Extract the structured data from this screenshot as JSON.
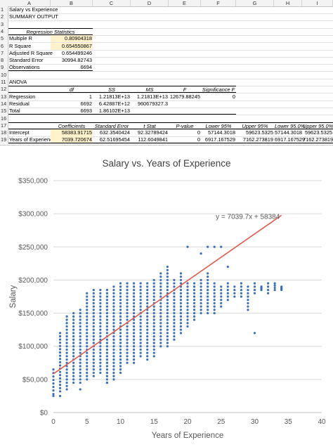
{
  "spreadsheet": {
    "columns": [
      "A",
      "B",
      "C",
      "D",
      "E",
      "F",
      "G",
      "H",
      "I"
    ],
    "rows": [
      {
        "n": "1",
        "cells": [
          {
            "c": "A",
            "t": "Salary vs Experience"
          }
        ]
      },
      {
        "n": "2",
        "cells": [
          {
            "c": "A",
            "t": "SUMMARY OUTPUT"
          }
        ]
      },
      {
        "n": "3",
        "cells": []
      },
      {
        "n": "4",
        "cells": [
          {
            "c": "A",
            "t": "Regression Statistics",
            "style": "ital ctr bline tline",
            "span": 2
          }
        ]
      },
      {
        "n": "5",
        "cells": [
          {
            "c": "A",
            "t": "Multiple R"
          },
          {
            "c": "B",
            "t": "0.80904318",
            "style": "num hl"
          }
        ]
      },
      {
        "n": "6",
        "cells": [
          {
            "c": "A",
            "t": "R Square"
          },
          {
            "c": "B",
            "t": "0.654550867",
            "style": "num hl"
          }
        ]
      },
      {
        "n": "7",
        "cells": [
          {
            "c": "A",
            "t": "Adjusted R Square"
          },
          {
            "c": "B",
            "t": "0.654499246",
            "style": "num"
          }
        ]
      },
      {
        "n": "8",
        "cells": [
          {
            "c": "A",
            "t": "Standard Error"
          },
          {
            "c": "B",
            "t": "30994.82743",
            "style": "num"
          }
        ]
      },
      {
        "n": "9",
        "cells": [
          {
            "c": "A",
            "t": "Observations",
            "style": "bline"
          },
          {
            "c": "B",
            "t": "6694",
            "style": "num bline"
          }
        ]
      },
      {
        "n": "10",
        "cells": []
      },
      {
        "n": "11",
        "cells": [
          {
            "c": "A",
            "t": "ANOVA"
          }
        ]
      },
      {
        "n": "12",
        "cells": [
          {
            "c": "A",
            "t": "",
            "style": "bline tline"
          },
          {
            "c": "B",
            "t": "df",
            "style": "ital ctr bline tline"
          },
          {
            "c": "C",
            "t": "SS",
            "style": "ital ctr bline tline"
          },
          {
            "c": "D",
            "t": "MS",
            "style": "ital ctr bline tline"
          },
          {
            "c": "E",
            "t": "F",
            "style": "ital ctr bline tline"
          },
          {
            "c": "F",
            "t": "Significance F",
            "style": "ital ctr bline tline"
          }
        ]
      },
      {
        "n": "13",
        "cells": [
          {
            "c": "A",
            "t": "Regression"
          },
          {
            "c": "B",
            "t": "1",
            "style": "num"
          },
          {
            "c": "C",
            "t": "1.21813E+13",
            "style": "num"
          },
          {
            "c": "D",
            "t": "1.21813E+13",
            "style": "num"
          },
          {
            "c": "E",
            "t": "12679.88245",
            "style": "num"
          },
          {
            "c": "F",
            "t": "0",
            "style": "num"
          }
        ]
      },
      {
        "n": "14",
        "cells": [
          {
            "c": "A",
            "t": "Residual"
          },
          {
            "c": "B",
            "t": "6692",
            "style": "num"
          },
          {
            "c": "C",
            "t": "6.42887E+12",
            "style": "num"
          },
          {
            "c": "D",
            "t": "960679327.3",
            "style": "num"
          }
        ]
      },
      {
        "n": "15",
        "cells": [
          {
            "c": "A",
            "t": "Total",
            "style": "bline"
          },
          {
            "c": "B",
            "t": "6693",
            "style": "num bline"
          },
          {
            "c": "C",
            "t": "1.86102E+13",
            "style": "num bline"
          },
          {
            "c": "D",
            "t": "",
            "style": "bline"
          },
          {
            "c": "E",
            "t": "",
            "style": "bline"
          },
          {
            "c": "F",
            "t": "",
            "style": "bline"
          }
        ]
      },
      {
        "n": "16",
        "cells": []
      },
      {
        "n": "17",
        "cells": [
          {
            "c": "A",
            "t": "",
            "style": "bline tline"
          },
          {
            "c": "B",
            "t": "Coefficients",
            "style": "ital ctr bline tline"
          },
          {
            "c": "C",
            "t": "Standard Error",
            "style": "ital ctr bline tline"
          },
          {
            "c": "D",
            "t": "t Stat",
            "style": "ital ctr bline tline"
          },
          {
            "c": "E",
            "t": "P-value",
            "style": "ital ctr bline tline"
          },
          {
            "c": "F",
            "t": "Lower 95%",
            "style": "ital ctr bline tline"
          },
          {
            "c": "G",
            "t": "Upper 95%",
            "style": "ital ctr bline tline"
          },
          {
            "c": "H",
            "t": "Lower 95.0%",
            "style": "ital ctr bline tline"
          },
          {
            "c": "I",
            "t": "Upper 95.0%",
            "style": "ital ctr bline tline"
          }
        ]
      },
      {
        "n": "18",
        "cells": [
          {
            "c": "A",
            "t": "Intercept"
          },
          {
            "c": "B",
            "t": "58383.91715",
            "style": "num hl"
          },
          {
            "c": "C",
            "t": "632.3540424",
            "style": "num"
          },
          {
            "c": "D",
            "t": "92.32789424",
            "style": "num"
          },
          {
            "c": "E",
            "t": "0",
            "style": "num"
          },
          {
            "c": "F",
            "t": "57144.3018",
            "style": "num"
          },
          {
            "c": "G",
            "t": "59623.5325",
            "style": "num"
          },
          {
            "c": "H",
            "t": "57144.3018",
            "style": "num"
          },
          {
            "c": "I",
            "t": "59623.5325",
            "style": "num"
          }
        ]
      },
      {
        "n": "19",
        "cells": [
          {
            "c": "A",
            "t": "Years of Experience",
            "style": "bline"
          },
          {
            "c": "B",
            "t": "7039.720674",
            "style": "num hl bline"
          },
          {
            "c": "C",
            "t": "62.51695454",
            "style": "num bline"
          },
          {
            "c": "D",
            "t": "112.6049841",
            "style": "num bline"
          },
          {
            "c": "E",
            "t": "0",
            "style": "num bline"
          },
          {
            "c": "F",
            "t": "6917.167529",
            "style": "num bline"
          },
          {
            "c": "G",
            "t": "7162.273819",
            "style": "num bline"
          },
          {
            "c": "H",
            "t": "6917.167529",
            "style": "num bline"
          },
          {
            "c": "I",
            "t": "7162.273819",
            "style": "num bline"
          }
        ]
      }
    ]
  },
  "chart_data": {
    "type": "scatter",
    "title": "Salary vs. Years of Experience",
    "xlabel": "Years of Experience",
    "ylabel": "Salary",
    "xlim": [
      0,
      40
    ],
    "ylim": [
      0,
      350000
    ],
    "x_ticks": [
      "0",
      "5",
      "10",
      "15",
      "20",
      "25",
      "30",
      "35",
      "40"
    ],
    "y_ticks": [
      "$0",
      "$50,000",
      "$100,000",
      "$150,000",
      "$200,000",
      "$250,000",
      "$300,000",
      "$350,000"
    ],
    "grid": "horizontal",
    "trendline": {
      "slope": 7039.7,
      "intercept": 58384,
      "x_range": [
        0,
        34
      ],
      "label": "y = 7039.7x + 58384",
      "color": "#e05a4e"
    },
    "point_color": "#3b6fb6",
    "clusters": [
      {
        "x": 0,
        "ymin": 28000,
        "ymax": 65000
      },
      {
        "x": 1,
        "ymin": 32000,
        "ymax": 120000
      },
      {
        "x": 2,
        "ymin": 35000,
        "ymax": 145000
      },
      {
        "x": 3,
        "ymin": 45000,
        "ymax": 150000
      },
      {
        "x": 4,
        "ymin": 45000,
        "ymax": 155000
      },
      {
        "x": 5,
        "ymin": 50000,
        "ymax": 180000
      },
      {
        "x": 6,
        "ymin": 55000,
        "ymax": 185000
      },
      {
        "x": 7,
        "ymin": 60000,
        "ymax": 185000
      },
      {
        "x": 8,
        "ymin": 45000,
        "ymax": 185000
      },
      {
        "x": 9,
        "ymin": 50000,
        "ymax": 190000
      },
      {
        "x": 10,
        "ymin": 60000,
        "ymax": 195000
      },
      {
        "x": 11,
        "ymin": 75000,
        "ymax": 195000
      },
      {
        "x": 12,
        "ymin": 75000,
        "ymax": 195000
      },
      {
        "x": 13,
        "ymin": 85000,
        "ymax": 195000
      },
      {
        "x": 14,
        "ymin": 80000,
        "ymax": 195000
      },
      {
        "x": 15,
        "ymin": 85000,
        "ymax": 200000
      },
      {
        "x": 16,
        "ymin": 100000,
        "ymax": 210000
      },
      {
        "x": 17,
        "ymin": 100000,
        "ymax": 220000
      },
      {
        "x": 18,
        "ymin": 110000,
        "ymax": 200000
      },
      {
        "x": 19,
        "ymin": 120000,
        "ymax": 210000
      },
      {
        "x": 20,
        "ymin": 130000,
        "ymax": 195000
      },
      {
        "x": 21,
        "ymin": 140000,
        "ymax": 195000
      },
      {
        "x": 22,
        "ymin": 150000,
        "ymax": 200000
      },
      {
        "x": 23,
        "ymin": 150000,
        "ymax": 210000
      },
      {
        "x": 24,
        "ymin": 150000,
        "ymax": 195000
      },
      {
        "x": 25,
        "ymin": 160000,
        "ymax": 190000
      },
      {
        "x": 26,
        "ymin": 170000,
        "ymax": 195000
      },
      {
        "x": 27,
        "ymin": 175000,
        "ymax": 190000
      },
      {
        "x": 28,
        "ymin": 175000,
        "ymax": 195000
      },
      {
        "x": 29,
        "ymin": 160000,
        "ymax": 190000
      },
      {
        "x": 30,
        "ymin": 180000,
        "ymax": 195000
      },
      {
        "x": 31,
        "ymin": 185000,
        "ymax": 190000
      },
      {
        "x": 32,
        "ymin": 180000,
        "ymax": 195000
      },
      {
        "x": 33,
        "ymin": 185000,
        "ymax": 195000
      },
      {
        "x": 34,
        "ymin": 185000,
        "ymax": 190000
      }
    ],
    "outliers": [
      {
        "x": 20,
        "y": 250000
      },
      {
        "x": 23,
        "y": 250000
      },
      {
        "x": 24,
        "y": 250000
      },
      {
        "x": 25,
        "y": 250000
      },
      {
        "x": 22,
        "y": 240000
      },
      {
        "x": 26,
        "y": 220000
      },
      {
        "x": 30,
        "y": 120000
      },
      {
        "x": 29,
        "y": 155000
      },
      {
        "x": 31,
        "y": 190000
      },
      {
        "x": 8,
        "y": 45000
      },
      {
        "x": 4,
        "y": 35000
      },
      {
        "x": 1,
        "y": 25000
      },
      {
        "x": 0,
        "y": 25000
      }
    ]
  }
}
